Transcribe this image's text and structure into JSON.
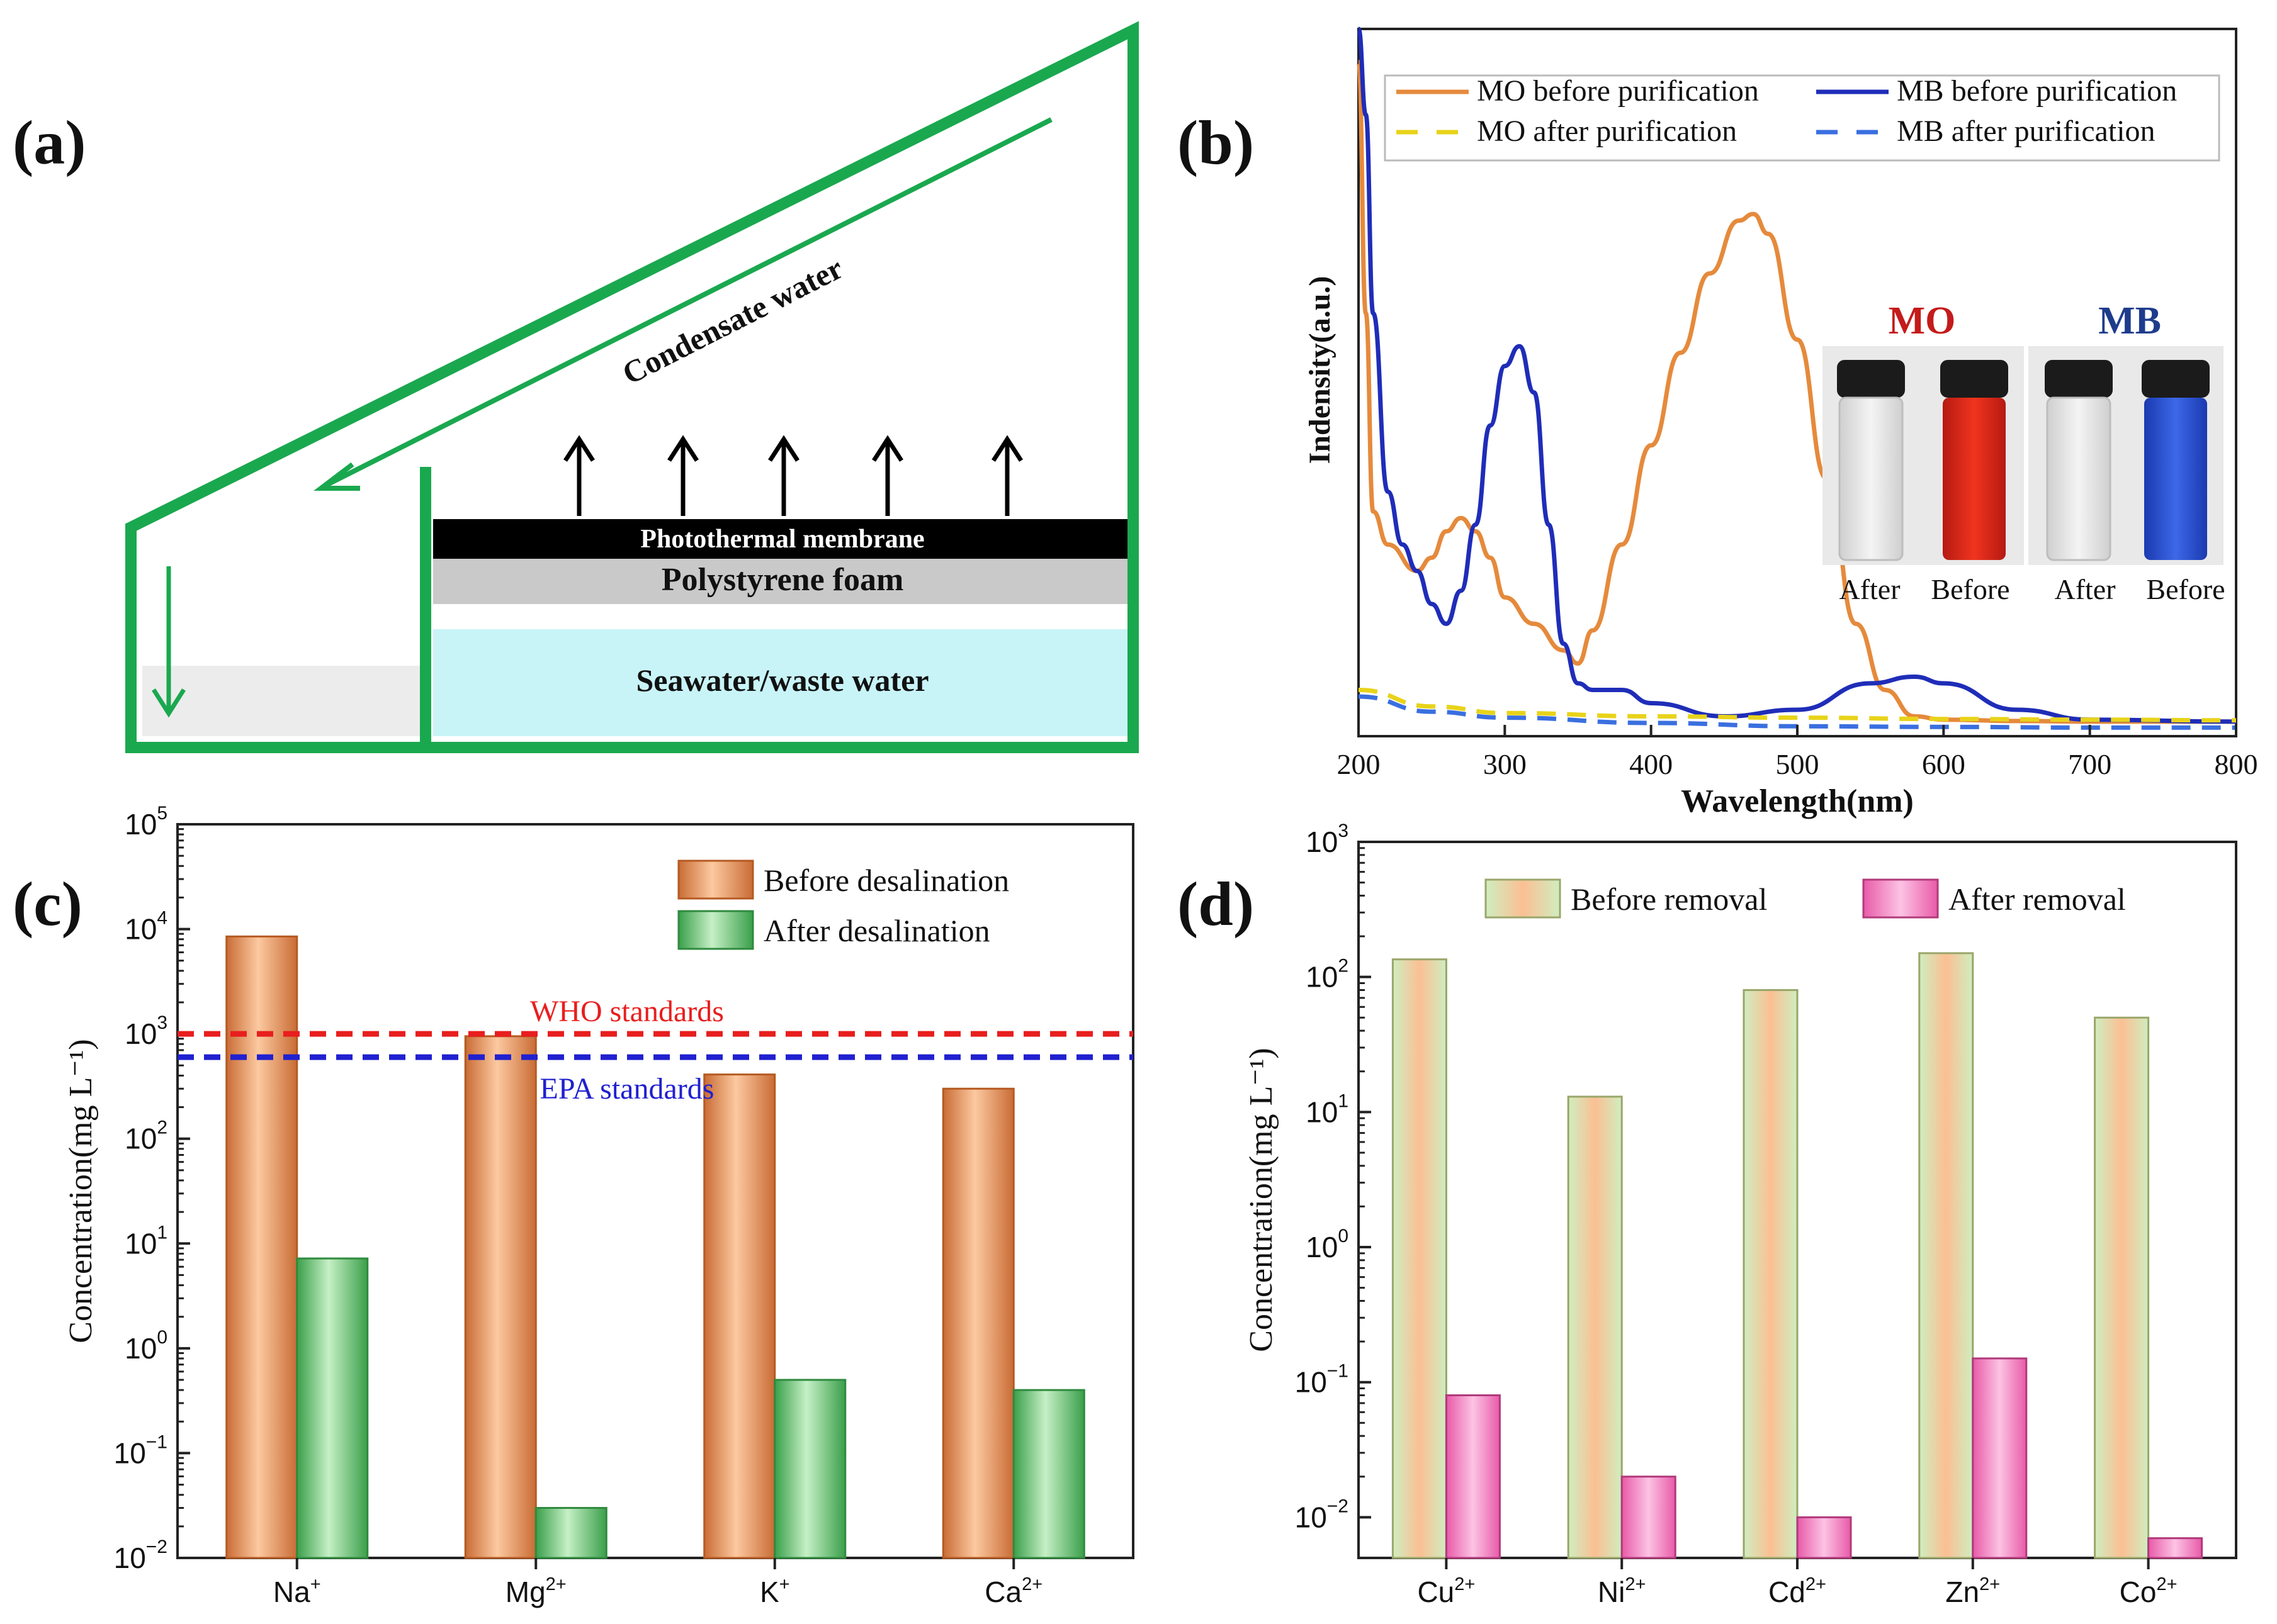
{
  "panels": {
    "a": {
      "label": "(a)",
      "condensate": "Condensate water",
      "membrane": "Photothermal membrane",
      "foam": "Polystyrene foam",
      "water": "Seawater/waste water"
    },
    "b": {
      "label": "(b)",
      "inset_mo": "MO",
      "inset_mb": "MB",
      "vial_labels_mo": [
        "After",
        "Before"
      ],
      "vial_labels_mb": [
        "After",
        "Before"
      ]
    },
    "c": {
      "label": "(c)"
    },
    "d": {
      "label": "(d)"
    }
  },
  "colors": {
    "green_frame": "#1aa84f",
    "mo": "#e58a3c",
    "mb": "#1f2db8",
    "mo_after": "#e8d31a",
    "mb_after": "#3a6fe0",
    "orange_bar": "#f2a66c",
    "green_bar": "#7fd37f",
    "pink_bar": "#f28ac8",
    "who": "#e81e1e",
    "epa": "#2020d0"
  },
  "chart_data": [
    {
      "panel": "b",
      "type": "line",
      "xlabel": "Wavelength(nm)",
      "ylabel": "Indensity(a.u.)",
      "xlim": [
        200,
        800
      ],
      "xticks": [
        "200",
        "300",
        "400",
        "500",
        "600",
        "700",
        "800"
      ],
      "legend_position": "top",
      "series": [
        {
          "name": "MO before purification",
          "style": "solid",
          "x": [
            200,
            205,
            210,
            220,
            240,
            250,
            260,
            270,
            280,
            290,
            300,
            320,
            340,
            350,
            360,
            380,
            400,
            420,
            440,
            460,
            470,
            480,
            500,
            520,
            540,
            560,
            580,
            600,
            650,
            700,
            800
          ],
          "y": [
            1.0,
            0.62,
            0.32,
            0.27,
            0.23,
            0.25,
            0.29,
            0.31,
            0.29,
            0.25,
            0.19,
            0.15,
            0.11,
            0.09,
            0.14,
            0.27,
            0.42,
            0.56,
            0.68,
            0.76,
            0.77,
            0.74,
            0.58,
            0.37,
            0.15,
            0.05,
            0.01,
            0.005,
            0.003,
            0.002,
            0.002
          ]
        },
        {
          "name": "MB before purification",
          "style": "solid",
          "x": [
            200,
            205,
            210,
            220,
            230,
            240,
            250,
            260,
            270,
            280,
            290,
            300,
            310,
            320,
            330,
            340,
            350,
            360,
            380,
            400,
            450,
            500,
            550,
            580,
            600,
            650,
            700,
            800
          ],
          "y": [
            1.05,
            0.92,
            0.62,
            0.35,
            0.27,
            0.23,
            0.18,
            0.15,
            0.2,
            0.3,
            0.45,
            0.54,
            0.57,
            0.5,
            0.3,
            0.12,
            0.06,
            0.05,
            0.05,
            0.03,
            0.01,
            0.02,
            0.06,
            0.07,
            0.06,
            0.02,
            0.005,
            0.002
          ]
        },
        {
          "name": "MO after purification",
          "style": "dashed",
          "x": [
            200,
            250,
            300,
            400,
            500,
            600,
            700,
            800
          ],
          "y": [
            0.05,
            0.025,
            0.015,
            0.01,
            0.008,
            0.006,
            0.005,
            0.004
          ]
        },
        {
          "name": "MB after purification",
          "style": "dashed",
          "x": [
            200,
            250,
            300,
            400,
            500,
            600,
            700,
            800
          ],
          "y": [
            0.04,
            0.017,
            0.008,
            0.0,
            -0.005,
            -0.006,
            -0.007,
            -0.007
          ]
        }
      ]
    },
    {
      "panel": "c",
      "type": "bar",
      "ylabel": "Concentration(mg L⁻¹)",
      "yscale": "log",
      "ylim": [
        0.01,
        100000
      ],
      "yticks": [
        {
          "base": "10",
          "exp": "5"
        },
        {
          "base": "10",
          "exp": "4"
        },
        {
          "base": "10",
          "exp": "3"
        },
        {
          "base": "10",
          "exp": "2"
        },
        {
          "base": "10",
          "exp": "1"
        },
        {
          "base": "10",
          "exp": "0"
        },
        {
          "base": "10",
          "exp": "−1"
        },
        {
          "base": "10",
          "exp": "−2"
        }
      ],
      "categories": [
        {
          "base": "Na",
          "sup": "+"
        },
        {
          "base": "Mg",
          "sup": "2+"
        },
        {
          "base": "K",
          "sup": "+"
        },
        {
          "base": "Ca",
          "sup": "2+"
        }
      ],
      "legend_position": "top-right",
      "series": [
        {
          "name": "Before desalination",
          "values": [
            8500,
            950,
            410,
            300
          ]
        },
        {
          "name": "After desalination",
          "values": [
            7.2,
            0.03,
            0.5,
            0.4
          ]
        }
      ],
      "reference_lines": [
        {
          "label": "WHO standards",
          "value": 1000
        },
        {
          "label": "EPA standards",
          "value": 600
        }
      ]
    },
    {
      "panel": "d",
      "type": "bar",
      "ylabel": "Concentration(mg L⁻¹)",
      "yscale": "log",
      "ylim": [
        0.005,
        1000
      ],
      "yticks": [
        {
          "base": "10",
          "exp": "3"
        },
        {
          "base": "10",
          "exp": "2"
        },
        {
          "base": "10",
          "exp": "1"
        },
        {
          "base": "10",
          "exp": "0"
        },
        {
          "base": "10",
          "exp": "−1"
        },
        {
          "base": "10",
          "exp": "−2"
        }
      ],
      "categories": [
        {
          "base": "Cu",
          "sup": "2+"
        },
        {
          "base": "Ni",
          "sup": "2+"
        },
        {
          "base": "Cd",
          "sup": "2+"
        },
        {
          "base": "Zn",
          "sup": "2+"
        },
        {
          "base": "Co",
          "sup": "2+"
        }
      ],
      "legend_position": "top",
      "series": [
        {
          "name": "Before removal",
          "values": [
            135,
            13,
            80,
            150,
            50
          ]
        },
        {
          "name": "After removal",
          "values": [
            0.08,
            0.02,
            0.01,
            0.15,
            0.007
          ]
        }
      ]
    }
  ]
}
